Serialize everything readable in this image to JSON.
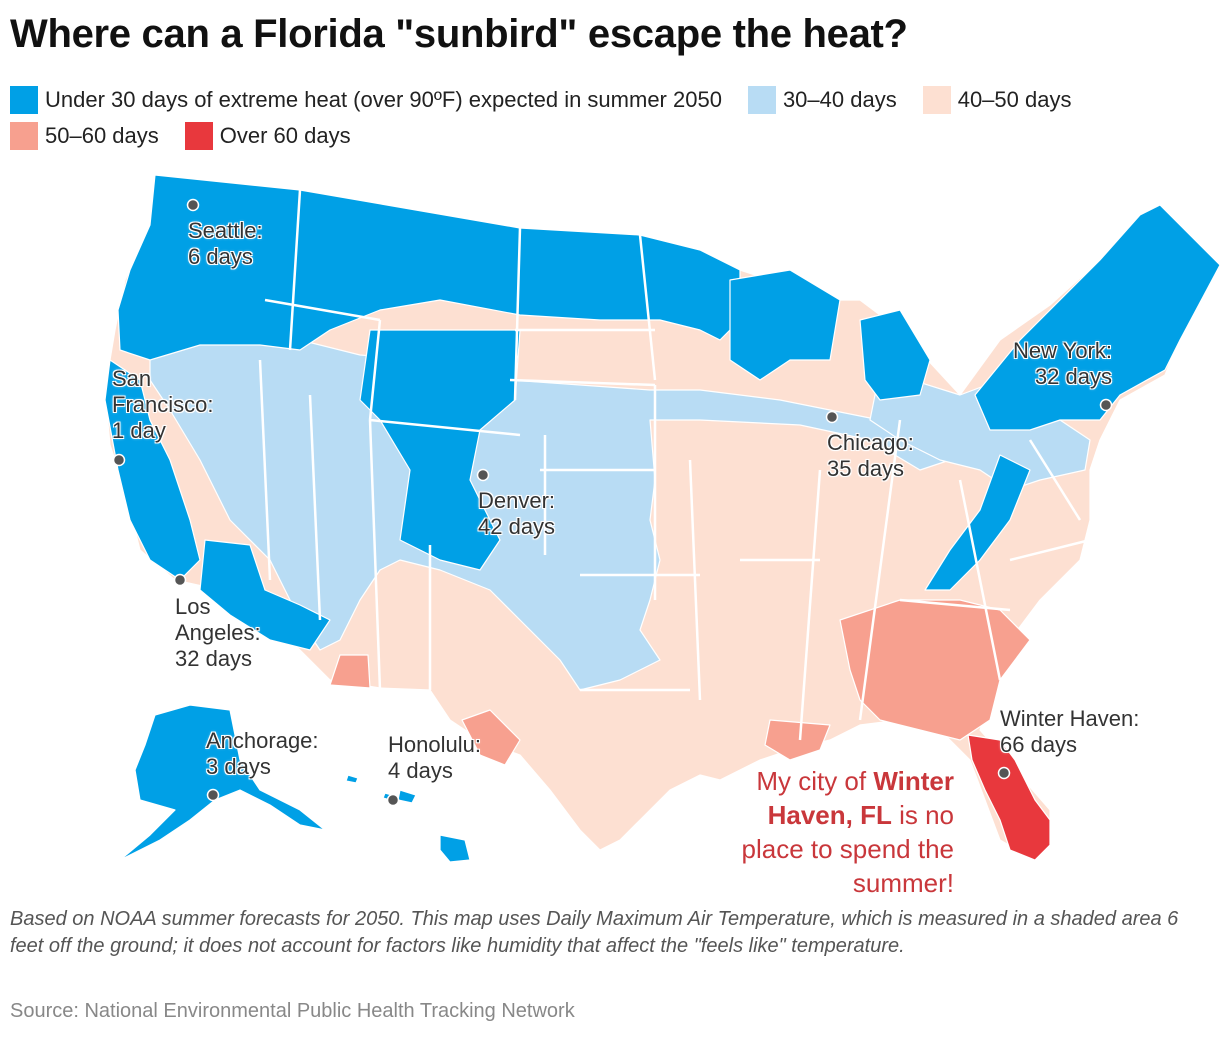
{
  "title": "Where can a Florida \"sunbird\" escape the heat?",
  "legend": [
    {
      "label": "Under 30 days of extreme heat (over 90ºF) expected in summer 2050",
      "color": "#00a0e6"
    },
    {
      "label": "30–40 days",
      "color": "#b8dcf4"
    },
    {
      "label": "40–50 days",
      "color": "#fde0d2"
    },
    {
      "label": "50–60 days",
      "color": "#f7a08f"
    },
    {
      "label": "Over 60 days",
      "color": "#e8383d"
    }
  ],
  "cities": [
    {
      "name": "Seattle:",
      "value": "6 days"
    },
    {
      "name": "San Francisco:",
      "value": "1 day"
    },
    {
      "name": "Los Angeles:",
      "value": "32 days"
    },
    {
      "name": "Denver:",
      "value": "42 days"
    },
    {
      "name": "Chicago:",
      "value": "35 days"
    },
    {
      "name": "New York:",
      "value": "32 days"
    },
    {
      "name": "Winter Haven:",
      "value": "66 days"
    },
    {
      "name": "Anchorage:",
      "value": "3 days"
    },
    {
      "name": "Honolulu:",
      "value": "4 days"
    }
  ],
  "callout": {
    "pre": "My city of ",
    "bold": "Winter Haven, FL",
    "post": " is no place to spend the summer!"
  },
  "note": "Based on NOAA summer forecasts for 2050. This map uses Daily Maximum Air Temperature, which is measured in a shaded area 6 feet off the ground; it does not account for factors like humidity that affect the \"feels like\" temperature.",
  "source": "Source: National Environmental Public Health Tracking Network"
}
